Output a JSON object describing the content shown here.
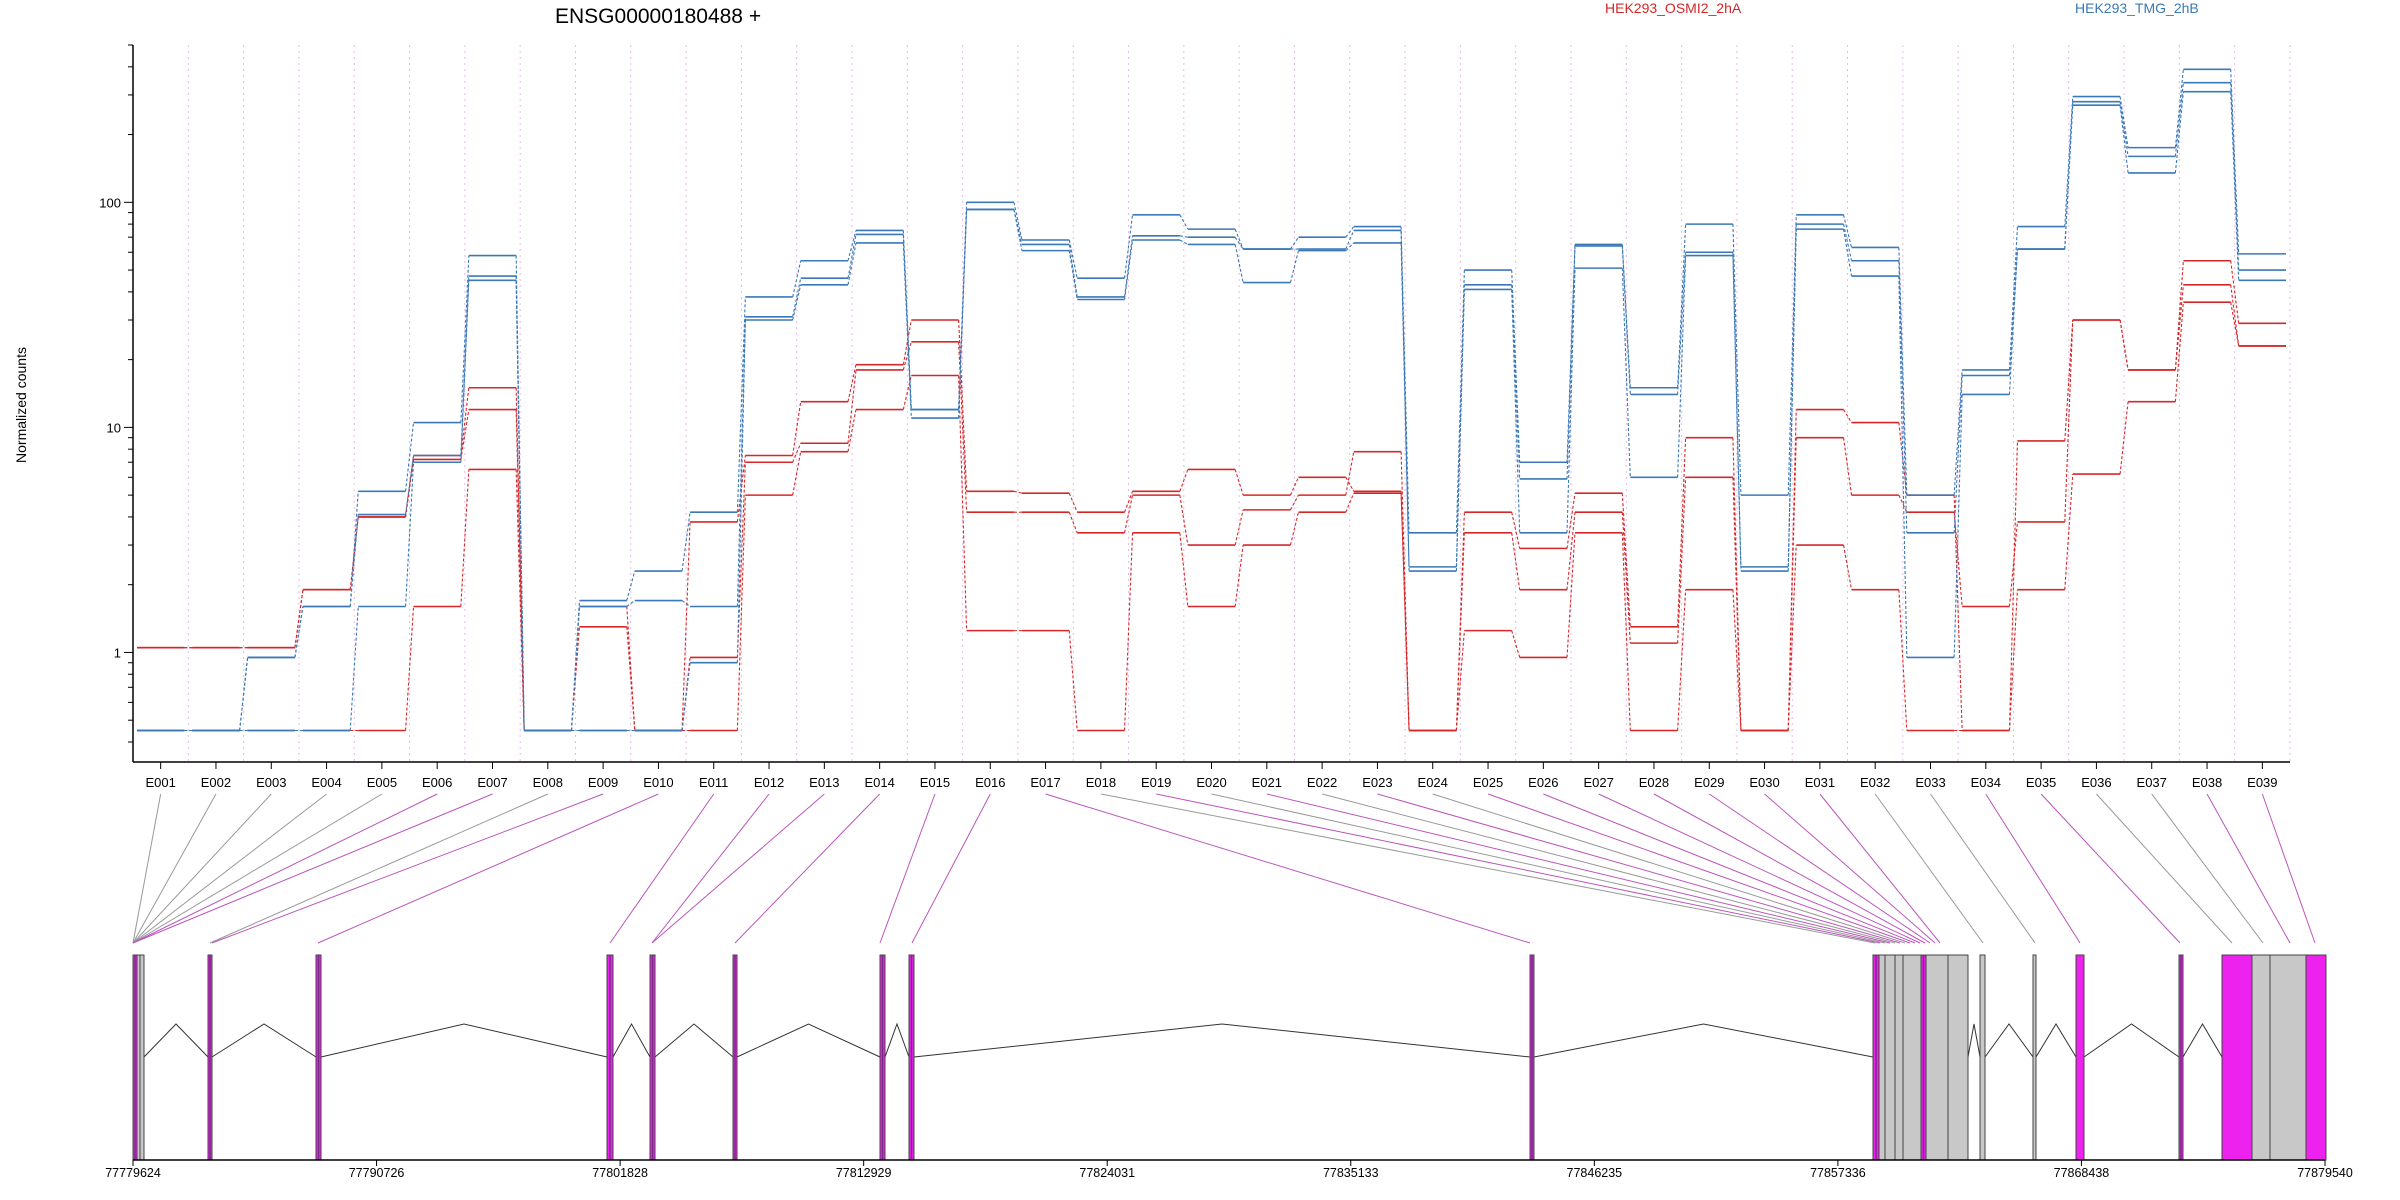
{
  "chart_data": {
    "type": "line",
    "title": "ENSG00000180488 +",
    "ylabel": "Normalized counts",
    "yscale": "log",
    "ylim": [
      0.4,
      500
    ],
    "yticks": [
      1,
      10,
      100
    ],
    "ytick_labels": [
      "1",
      "10",
      "100"
    ],
    "grid": "dotted vertical lines at exon bin edges",
    "legend_position": "top",
    "colors": {
      "HEK293_OSMI2_2hA": "#d62728",
      "HEK293_TMG_2hB": "#3a78b8",
      "exon_default": "#c8c8c8",
      "exon_highlight": "#ee22ee",
      "connector_gray": "#999999",
      "connector_magenta": "#bb55bb"
    },
    "categories": [
      "E001",
      "E002",
      "E003",
      "E004",
      "E005",
      "E006",
      "E007",
      "E008",
      "E009",
      "E010",
      "E011",
      "E012",
      "E013",
      "E014",
      "E015",
      "E016",
      "E017",
      "E018",
      "E019",
      "E020",
      "E021",
      "E022",
      "E023",
      "E024",
      "E025",
      "E026",
      "E027",
      "E028",
      "E029",
      "E030",
      "E031",
      "E032",
      "E033",
      "E034",
      "E035",
      "E036",
      "E037",
      "E038",
      "E039"
    ],
    "series": [
      {
        "name": "HEK293_OSMI2_2hA",
        "values": [
          1.05,
          1.05,
          1.05,
          1.9,
          4.0,
          7.5,
          15,
          0.45,
          1.6,
          0.45,
          3.8,
          7.5,
          13,
          19,
          30,
          5.2,
          5.1,
          4.2,
          5.2,
          6.5,
          5.0,
          6.0,
          5.2,
          0.45,
          4.2,
          2.9,
          5.1,
          1.3,
          9.0,
          0.45,
          12,
          10.5,
          5.0,
          0.45,
          8.7,
          30,
          18,
          55,
          29
        ]
      },
      {
        "name": "HEK293_OSMI2_2hA",
        "values": [
          1.05,
          1.05,
          1.05,
          1.9,
          4.0,
          7.2,
          12,
          0.45,
          1.3,
          0.45,
          0.95,
          7.0,
          8.5,
          18,
          24,
          4.2,
          4.2,
          3.4,
          5.0,
          3.0,
          4.3,
          5.0,
          7.8,
          0.45,
          3.4,
          1.9,
          4.2,
          1.1,
          6.0,
          0.45,
          9.0,
          5.0,
          4.2,
          1.6,
          3.8,
          30,
          18,
          43,
          23
        ]
      },
      {
        "name": "HEK293_OSMI2_2hA",
        "values": [
          0.45,
          0.45,
          0.45,
          0.45,
          0.45,
          1.6,
          6.5,
          0.45,
          0.45,
          0.45,
          0.45,
          5.0,
          7.8,
          12,
          17,
          1.25,
          1.25,
          0.45,
          3.4,
          1.6,
          3.0,
          4.2,
          5.1,
          0.45,
          1.25,
          0.95,
          3.4,
          0.45,
          1.9,
          0.45,
          3.0,
          1.9,
          0.45,
          0.45,
          1.9,
          6.2,
          13,
          36,
          23
        ]
      },
      {
        "name": "HEK293_TMG_2hB",
        "values": [
          0.45,
          0.45,
          0.95,
          1.6,
          5.2,
          10.5,
          58,
          0.45,
          1.7,
          2.3,
          4.2,
          38,
          55,
          75,
          12,
          100,
          68,
          46,
          88,
          76,
          62,
          70,
          78,
          3.4,
          50,
          7.0,
          65,
          15,
          80,
          5.0,
          88,
          63,
          5.0,
          18,
          78,
          295,
          175,
          390,
          59
        ]
      },
      {
        "name": "HEK293_TMG_2hB",
        "values": [
          0.45,
          0.45,
          0.95,
          1.6,
          4.1,
          7.5,
          47,
          0.45,
          1.6,
          1.7,
          1.6,
          31,
          46,
          72,
          12,
          93,
          65,
          38,
          71,
          70,
          62,
          62,
          75,
          2.4,
          43,
          5.9,
          64,
          14,
          60,
          2.4,
          80,
          55,
          3.4,
          17,
          62,
          280,
          160,
          340,
          50
        ]
      },
      {
        "name": "HEK293_TMG_2hB",
        "values": [
          0.45,
          0.45,
          0.45,
          0.45,
          1.6,
          7.0,
          45,
          0.45,
          0.45,
          0.45,
          0.9,
          30,
          43,
          66,
          11,
          93,
          61,
          37,
          68,
          65,
          44,
          61,
          66,
          2.3,
          41,
          3.4,
          51,
          6.0,
          58,
          2.3,
          76,
          47,
          0.95,
          14,
          62,
          270,
          135,
          310,
          45
        ]
      }
    ],
    "genomic_ticks": [
      "77779624",
      "77790726",
      "77801828",
      "77812929",
      "77824031",
      "77835133",
      "77846235",
      "77857336",
      "77868438",
      "77879540"
    ]
  },
  "legend": [
    {
      "label": "HEK293_OSMI2_2hA",
      "color": "#d62728"
    },
    {
      "label": "HEK293_TMG_2hB",
      "color": "#3a78b8"
    }
  ]
}
